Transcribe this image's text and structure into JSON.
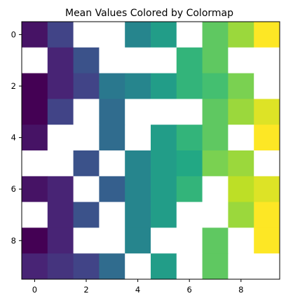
{
  "chart_data": {
    "type": "heatmap",
    "title": "Mean Values Colored by Colormap",
    "colormap": "viridis",
    "missing_color": "#ffffff",
    "x_ticks": [
      0,
      2,
      4,
      6,
      8
    ],
    "y_ticks": [
      0,
      2,
      4,
      6,
      8
    ],
    "x_tick_labels": [
      "0",
      "2",
      "4",
      "6",
      "8"
    ],
    "y_tick_labels": [
      "0",
      "2",
      "4",
      "6",
      "8"
    ],
    "xlim": [
      -0.5,
      9.5
    ],
    "ylim": [
      9.5,
      -0.5
    ],
    "grid": false,
    "values": [
      [
        0.05,
        0.2,
        null,
        null,
        0.45,
        0.55,
        null,
        0.75,
        0.85,
        1.0
      ],
      [
        null,
        0.1,
        0.25,
        null,
        null,
        null,
        0.65,
        0.75,
        null,
        null
      ],
      [
        0.0,
        0.1,
        0.2,
        0.4,
        0.45,
        0.55,
        0.65,
        0.7,
        0.8,
        null
      ],
      [
        0.0,
        0.2,
        null,
        0.35,
        null,
        null,
        null,
        0.75,
        0.85,
        0.95
      ],
      [
        0.05,
        null,
        null,
        0.35,
        null,
        0.55,
        0.65,
        0.75,
        null,
        1.0
      ],
      [
        null,
        null,
        0.25,
        null,
        0.45,
        0.55,
        0.6,
        0.8,
        0.85,
        null
      ],
      [
        0.05,
        0.1,
        null,
        0.3,
        0.45,
        0.55,
        0.65,
        null,
        0.9,
        0.95
      ],
      [
        null,
        0.1,
        0.25,
        null,
        0.45,
        0.55,
        null,
        null,
        0.85,
        1.0
      ],
      [
        0.0,
        0.1,
        null,
        null,
        0.45,
        null,
        null,
        0.75,
        null,
        1.0
      ],
      [
        0.1,
        0.15,
        0.2,
        0.35,
        null,
        0.55,
        null,
        0.75,
        null,
        null
      ]
    ]
  }
}
